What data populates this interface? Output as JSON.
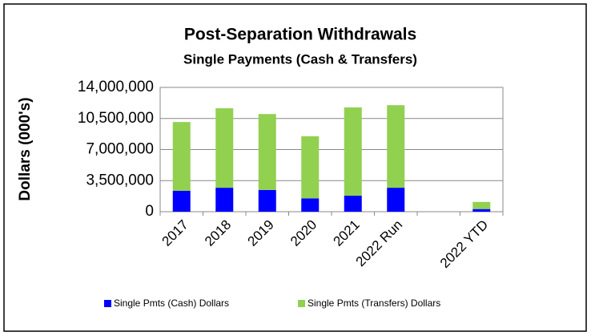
{
  "chart_data": {
    "type": "stacked_bar",
    "title": "Post-Separation Withdrawals",
    "subtitle": "Single Payments (Cash & Transfers)",
    "y_label": "Dollars (000's)",
    "categories": [
      "2017",
      "2018",
      "2019",
      "2020",
      "2021",
      "2022 Run",
      null,
      "2022 YTD"
    ],
    "series": [
      {
        "name": "Single Pmts (Cash) Dollars",
        "color": "#0000ff",
        "values": [
          2350000,
          2700000,
          2450000,
          1500000,
          1800000,
          2700000,
          null,
          300000
        ]
      },
      {
        "name": "Single Pmts (Transfers) Dollars",
        "color": "#92d050",
        "values": [
          7750000,
          8950000,
          8550000,
          7000000,
          9950000,
          9300000,
          null,
          800000
        ]
      }
    ],
    "ylim": [
      0,
      14000000
    ],
    "yticks": [
      0,
      {
        "value": 3500000,
        "label": "3,500,000"
      },
      {
        "value": 7000000,
        "label": "7,000,000"
      },
      {
        "value": 10500000,
        "label": "10,500,000"
      },
      {
        "value": 14000000,
        "label": "14,000,000"
      }
    ],
    "grid": true,
    "legend": "bottom"
  }
}
